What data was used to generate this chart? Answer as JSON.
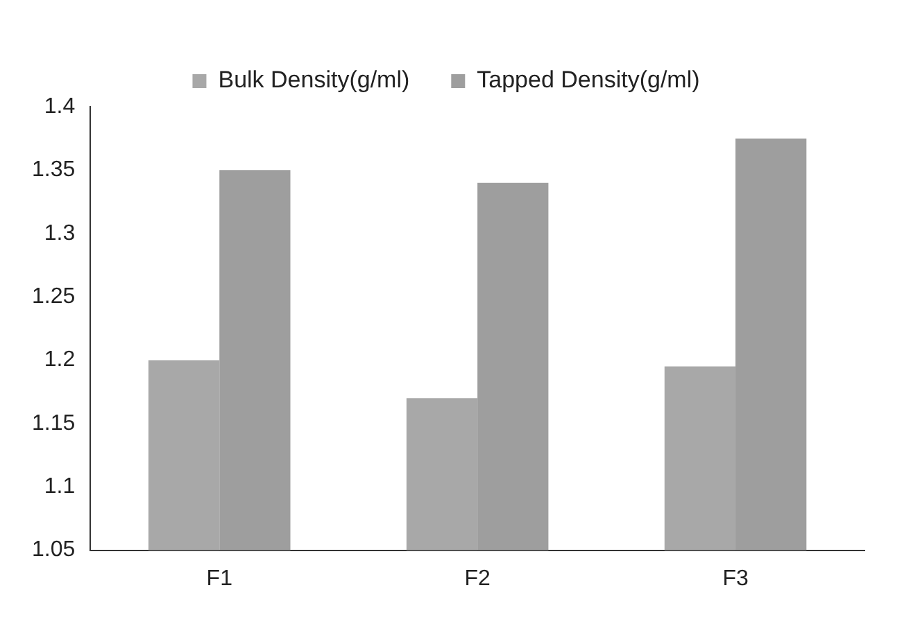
{
  "chart_data": {
    "type": "bar",
    "categories": [
      "F1",
      "F2",
      "F3"
    ],
    "series": [
      {
        "name": "Bulk Density(g/ml)",
        "color": "#a8a8a8",
        "values": [
          1.2,
          1.17,
          1.195
        ]
      },
      {
        "name": "Tapped Density(g/ml)",
        "color": "#9e9e9e",
        "values": [
          1.35,
          1.34,
          1.375
        ]
      }
    ],
    "ylim": [
      1.05,
      1.4
    ],
    "yticks": [
      1.05,
      1.1,
      1.15,
      1.2,
      1.25,
      1.3,
      1.35,
      1.4
    ],
    "grid": false,
    "legend": "top"
  }
}
